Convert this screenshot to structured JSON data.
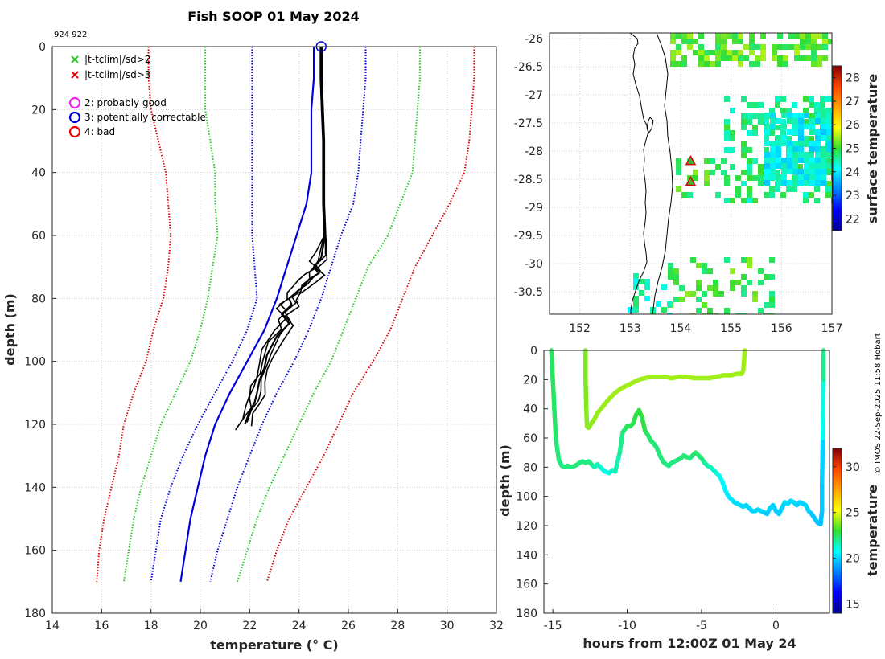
{
  "page": {
    "title": "Fish SOOP 01 May 2024",
    "id_label": "924 922",
    "credit": "© IMOS 22-Sep-2025 11:58 Hobart"
  },
  "legend": {
    "items": [
      {
        "symbol": "x",
        "color": "#22cc22",
        "label": "|t-tclim|/sd>2"
      },
      {
        "symbol": "x",
        "color": "#dd0000",
        "label": "|t-tclim|/sd>3"
      },
      {
        "symbol": "o",
        "color": "#ee22ee",
        "label": "2: probably good"
      },
      {
        "symbol": "o",
        "color": "#0000dd",
        "label": "3: potentially correctable"
      },
      {
        "symbol": "o",
        "color": "#ee0000",
        "label": "4: bad"
      }
    ]
  },
  "chart_data": [
    {
      "type": "line",
      "name": "profile",
      "title": "Fish SOOP 01 May 2024",
      "xlabel": "temperature (° C)",
      "ylabel": "depth (m)",
      "xlim": [
        14,
        32
      ],
      "ylim": [
        0,
        180
      ],
      "y_reversed": true,
      "grid": true,
      "x_ticks": [
        14,
        16,
        18,
        20,
        22,
        24,
        26,
        28,
        30,
        32
      ],
      "y_ticks": [
        0,
        20,
        40,
        60,
        80,
        100,
        120,
        140,
        160,
        180
      ],
      "depth_levels": [
        0,
        10,
        20,
        30,
        40,
        50,
        60,
        70,
        80,
        90,
        100,
        110,
        120,
        130,
        140,
        150,
        160,
        170
      ],
      "series": [
        {
          "name": "clim -3sd (left)",
          "color": "#dd0000",
          "style": "dotted",
          "values": [
            17.9,
            17.9,
            18.0,
            18.3,
            18.6,
            18.7,
            18.8,
            18.7,
            18.5,
            18.1,
            17.8,
            17.3,
            16.9,
            16.7,
            16.4,
            16.1,
            15.9,
            15.8
          ]
        },
        {
          "name": "clim -2sd (left)",
          "color": "#22cc22",
          "style": "dotted",
          "values": [
            20.2,
            20.2,
            20.2,
            20.4,
            20.6,
            20.6,
            20.7,
            20.5,
            20.3,
            20.0,
            19.6,
            19.0,
            18.4,
            18.0,
            17.6,
            17.3,
            17.1,
            16.9
          ]
        },
        {
          "name": "clim -1sd (left)",
          "color": "#0000dd",
          "style": "dotted",
          "values": [
            22.1,
            22.1,
            22.1,
            22.1,
            22.1,
            22.1,
            22.1,
            22.2,
            22.3,
            21.9,
            21.3,
            20.6,
            19.9,
            19.3,
            18.8,
            18.4,
            18.2,
            18.0
          ]
        },
        {
          "name": "clim mean",
          "color": "#0000dd",
          "style": "solid",
          "values": [
            24.6,
            24.6,
            24.5,
            24.5,
            24.5,
            24.3,
            23.9,
            23.5,
            23.1,
            22.6,
            21.9,
            21.2,
            20.6,
            20.2,
            19.9,
            19.6,
            19.4,
            19.2
          ]
        },
        {
          "name": "clim +1sd (right)",
          "color": "#0000dd",
          "style": "dotted",
          "values": [
            26.7,
            26.7,
            26.6,
            26.5,
            26.4,
            26.2,
            25.7,
            25.3,
            24.9,
            24.4,
            23.8,
            23.1,
            22.5,
            22.0,
            21.5,
            21.1,
            20.7,
            20.4
          ]
        },
        {
          "name": "clim +2sd (right)",
          "color": "#22cc22",
          "style": "dotted",
          "values": [
            28.9,
            28.9,
            28.8,
            28.7,
            28.6,
            28.1,
            27.6,
            26.8,
            26.3,
            25.8,
            25.3,
            24.6,
            24.0,
            23.4,
            22.8,
            22.3,
            21.9,
            21.5
          ]
        },
        {
          "name": "clim +3sd (right)",
          "color": "#dd0000",
          "style": "dotted",
          "values": [
            31.1,
            31.1,
            31.0,
            30.9,
            30.7,
            30.1,
            29.4,
            28.7,
            28.2,
            27.7,
            27.0,
            26.2,
            25.6,
            25.0,
            24.3,
            23.6,
            23.1,
            22.7
          ]
        }
      ],
      "observed": {
        "name": "observed profiles",
        "color": "#000000",
        "temperature": [
          24.9,
          24.9,
          24.9,
          24.95,
          25.0,
          25.0,
          25.0,
          25.05,
          24.9,
          24.6,
          24.8,
          24.4,
          24.2,
          23.9,
          23.6,
          23.7,
          23.3,
          23.6,
          23.1,
          22.7,
          22.6,
          22.4,
          22.3,
          22.2,
          22.0,
          21.8
        ],
        "depth": [
          0,
          5,
          10,
          20,
          30,
          40,
          50,
          60,
          67,
          70,
          72,
          74,
          76,
          78,
          80,
          82,
          85,
          88,
          92,
          98,
          102,
          106,
          110,
          113,
          116,
          120
        ]
      },
      "flag_marker": {
        "temperature": 24.9,
        "depth": 0,
        "flag": "3"
      }
    },
    {
      "type": "heatmap",
      "name": "map",
      "colorbar_label": "surface temperature",
      "xlim": [
        151.4,
        157.0
      ],
      "ylim": [
        -30.9,
        -25.9
      ],
      "x_ticks": [
        152,
        153,
        154,
        155,
        156,
        157
      ],
      "y_ticks": [
        -26,
        -26.5,
        -27,
        -27.5,
        -28,
        -28.5,
        -29,
        -29.5,
        -30,
        -30.5
      ],
      "clim": [
        21.5,
        28.5
      ],
      "cbar_ticks": [
        22,
        23,
        24,
        25,
        26,
        27,
        28
      ],
      "stations": [
        {
          "lon": 154.2,
          "lat": -28.18
        },
        {
          "lon": 154.2,
          "lat": -28.55
        }
      ]
    },
    {
      "type": "scatter",
      "name": "depth_time",
      "xlabel": "hours from 12:00Z 01 May 24",
      "ylabel": "depth (m)",
      "colorbar_label": "temperature",
      "xlim": [
        -15.6,
        3.6
      ],
      "ylim": [
        0,
        180
      ],
      "y_reversed": true,
      "x_ticks": [
        -15,
        -10,
        -5,
        0
      ],
      "y_ticks": [
        0,
        20,
        40,
        60,
        80,
        100,
        120,
        140,
        160,
        180
      ],
      "clim": [
        14,
        32
      ],
      "cbar_ticks": [
        15,
        20,
        25,
        30
      ],
      "tracks": [
        {
          "name": "dive 1",
          "hours": [
            -15.1,
            -15.0,
            -14.9,
            -14.8,
            -14.6,
            -14.4,
            -14.2,
            -14.0,
            -13.8,
            -13.5,
            -13.2,
            -13.0,
            -12.8,
            -12.6,
            -12.4,
            -12.2,
            -12.0,
            -11.8,
            -11.5,
            -11.2,
            -11.0,
            -10.8,
            -10.5,
            -10.3,
            -10.0,
            -9.8,
            -9.6,
            -9.4,
            -9.2,
            -9.0,
            -8.8,
            -8.6,
            -8.4,
            -8.2,
            -8.0,
            -7.8,
            -7.6,
            -7.4,
            -7.2,
            -7.0,
            -6.8,
            -6.6,
            -6.4,
            -6.2,
            -6.0,
            -5.8,
            -5.6,
            -5.4,
            -5.2,
            -5.0,
            -4.8,
            -4.6,
            -4.4,
            -4.2,
            -4.0,
            -3.8,
            -3.6,
            -3.4,
            -3.2,
            -3.0,
            -2.8,
            -2.6,
            -2.4,
            -2.2,
            -2.0,
            -1.8,
            -1.6,
            -1.4,
            -1.2,
            -1.0,
            -0.8,
            -0.6,
            -0.4,
            -0.2,
            0.0,
            0.2,
            0.4,
            0.6,
            0.8,
            1.0,
            1.2,
            1.4,
            1.6,
            1.8,
            2.0,
            2.2,
            2.4,
            2.6,
            2.8,
            3.0,
            3.1,
            3.1,
            3.15,
            3.2,
            3.2
          ],
          "depth": [
            0,
            20,
            40,
            60,
            75,
            79,
            80,
            79,
            80,
            79,
            77,
            76,
            77,
            76,
            78,
            80,
            78,
            80,
            83,
            84,
            82,
            83,
            70,
            56,
            52,
            52,
            50,
            44,
            41,
            46,
            55,
            58,
            62,
            64,
            67,
            72,
            76,
            78,
            79,
            77,
            76,
            75,
            74,
            72,
            73,
            74,
            72,
            70,
            72,
            74,
            77,
            79,
            80,
            82,
            84,
            86,
            90,
            96,
            100,
            102,
            104,
            105,
            106,
            107,
            106,
            108,
            110,
            110,
            109,
            110,
            111,
            112,
            108,
            106,
            110,
            112,
            108,
            104,
            105,
            103,
            104,
            106,
            104,
            105,
            106,
            110,
            112,
            115,
            118,
            119,
            110,
            90,
            60,
            20,
            0
          ],
          "temps": [
            22.5,
            22.5,
            22.4,
            22.3,
            22.1,
            22.2,
            22.1,
            22.2,
            22.1,
            22.3,
            22.2,
            22.1,
            22.2,
            22.1,
            22.0,
            21.5,
            21.6,
            21.2,
            21.0,
            21.1,
            21.4,
            21.6,
            22.0,
            22.3,
            22.6,
            22.6,
            22.7,
            22.8,
            22.9,
            22.8,
            22.6,
            22.4,
            22.3,
            22.3,
            22.2,
            22.2,
            22.2,
            22.1,
            22.1,
            22.2,
            22.2,
            22.2,
            22.3,
            22.3,
            22.3,
            22.2,
            22.3,
            22.4,
            22.3,
            22.2,
            21.9,
            21.7,
            21.5,
            21.3,
            21.1,
            20.9,
            20.7,
            20.5,
            20.4,
            20.3,
            20.2,
            20.2,
            20.1,
            20.1,
            20.1,
            20.0,
            20.0,
            20.0,
            20.0,
            20.0,
            19.9,
            19.9,
            20.0,
            20.0,
            19.9,
            19.9,
            20.0,
            20.1,
            20.1,
            20.1,
            20.1,
            20.0,
            20.0,
            20.0,
            20.0,
            19.9,
            19.8,
            19.8,
            19.7,
            19.7,
            19.8,
            20.0,
            21.0,
            22.0,
            22.5
          ]
        },
        {
          "name": "dive 2",
          "hours": [
            -12.8,
            -12.8,
            -12.75,
            -12.7,
            -12.6,
            -12.4,
            -12.2,
            -12.0,
            -11.6,
            -11.2,
            -10.8,
            -10.4,
            -10.0,
            -9.6,
            -9.2,
            -8.8,
            -8.4,
            -8.0,
            -7.5,
            -7.0,
            -6.5,
            -6.0,
            -5.5,
            -5.0,
            -4.5,
            -4.0,
            -3.5,
            -3.0,
            -2.6,
            -2.3,
            -2.2,
            -2.15,
            -2.1
          ],
          "depth": [
            0,
            20,
            40,
            52,
            53,
            50,
            47,
            43,
            38,
            33,
            29,
            26,
            24,
            22,
            20,
            19,
            18,
            18,
            18,
            19,
            18,
            18,
            19,
            19,
            19,
            18,
            17,
            17,
            16,
            16,
            14,
            8,
            0
          ],
          "temps": [
            23.8,
            23.8,
            23.9,
            24.0,
            24.0,
            24.0,
            24.1,
            24.1,
            24.1,
            24.2,
            24.2,
            24.2,
            24.2,
            24.2,
            24.2,
            24.2,
            24.2,
            24.2,
            24.2,
            24.2,
            24.2,
            24.2,
            24.2,
            24.2,
            24.2,
            24.2,
            24.2,
            24.2,
            24.2,
            24.2,
            24.2,
            24.2,
            24.1
          ]
        }
      ]
    }
  ]
}
